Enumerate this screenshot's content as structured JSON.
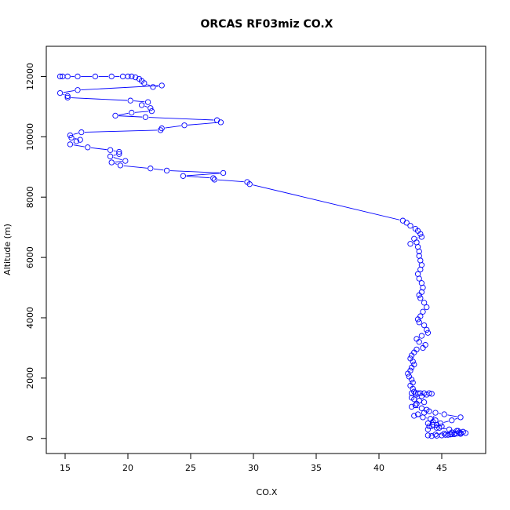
{
  "chart_data": {
    "type": "scatter",
    "title": "ORCAS RF03miz CO.X",
    "xlabel": "CO.X",
    "ylabel": "Altitude (m)",
    "xlim": [
      13.5,
      48.5
    ],
    "ylim": [
      -500,
      13000
    ],
    "x_ticks": [
      15,
      20,
      25,
      30,
      35,
      40,
      45
    ],
    "y_ticks": [
      0,
      2000,
      4000,
      6000,
      8000,
      10000,
      12000
    ],
    "x_tick_labels": [
      "15",
      "20",
      "25",
      "30",
      "35",
      "40",
      "45"
    ],
    "y_tick_labels": [
      "0",
      "2000",
      "4000",
      "6000",
      "8000",
      "10000",
      "12000"
    ],
    "grid": false,
    "legend": "none",
    "series": [
      {
        "color": "#0000ff",
        "marker": "open-circle",
        "connect": true,
        "x": [
          14.6,
          14.8,
          15.2,
          16.0,
          17.4,
          18.7,
          19.6,
          20.0,
          20.3,
          20.6,
          20.9,
          21.1,
          21.3,
          22.0,
          22.7,
          16.0,
          14.6,
          15.2,
          15.2,
          20.2,
          21.6,
          21.1,
          21.8,
          21.9,
          20.3,
          19.0,
          21.4,
          27.1,
          27.4,
          24.5,
          22.7,
          22.6,
          16.3,
          15.4,
          15.5,
          16.2,
          15.9,
          15.4,
          16.8,
          18.6,
          19.3,
          19.3,
          18.6,
          19.8,
          18.7,
          19.4,
          21.8,
          23.1,
          27.6,
          24.4,
          26.8,
          26.9,
          29.5,
          29.7,
          41.9,
          42.2,
          42.5,
          42.9,
          43.1,
          43.3,
          43.4,
          42.8,
          42.5,
          43.0,
          43.1,
          43.2,
          43.2,
          43.3,
          43.4,
          43.3,
          43.1,
          43.2,
          43.4,
          43.5,
          43.4,
          43.2,
          43.3,
          43.6,
          43.8,
          43.5,
          43.3,
          43.1,
          43.2,
          43.6,
          43.8,
          43.9,
          43.4,
          43.0,
          43.2,
          43.7,
          43.5,
          43.0,
          42.8,
          42.6,
          42.5,
          42.7,
          42.8,
          42.6,
          42.5,
          42.3,
          42.4,
          42.6,
          42.7,
          42.5,
          42.7,
          42.8,
          42.6,
          42.9,
          43.1,
          43.3,
          43.6,
          44.0,
          44.2,
          43.8,
          43.4,
          42.6,
          42.8,
          43.2,
          43.6,
          43.0,
          42.9,
          42.6,
          43.4,
          43.8,
          44.0,
          43.6,
          43.1,
          42.8,
          43.5,
          44.1,
          44.5,
          44.3,
          43.9,
          44.6,
          45.0,
          44.6,
          43.9,
          44.5,
          45.2,
          46.5,
          45.8,
          44.9,
          44.3,
          44.0,
          44.8,
          45.6,
          46.2,
          46.4,
          46.0,
          45.5,
          45.0,
          44.6,
          44.2,
          43.9,
          44.5,
          45.2,
          45.8,
          46.3,
          46.7,
          46.9,
          46.5,
          46.0,
          45.7,
          45.3,
          45.8,
          46.2,
          46.5
        ],
        "y": [
          12000,
          12000,
          12000,
          12000,
          12000,
          12000,
          12000,
          12000,
          12000,
          11970,
          11920,
          11850,
          11780,
          11650,
          11700,
          11550,
          11450,
          11350,
          11300,
          11200,
          11150,
          11050,
          10950,
          10850,
          10800,
          10700,
          10650,
          10550,
          10480,
          10380,
          10280,
          10220,
          10150,
          10050,
          9970,
          9900,
          9850,
          9750,
          9650,
          9560,
          9500,
          9430,
          9350,
          9200,
          9150,
          9050,
          8950,
          8880,
          8800,
          8700,
          8630,
          8580,
          8500,
          8430,
          7220,
          7150,
          7050,
          6950,
          6880,
          6780,
          6680,
          6620,
          6450,
          6500,
          6350,
          6200,
          6050,
          5900,
          5750,
          5600,
          5450,
          5300,
          5150,
          5000,
          4850,
          4750,
          4650,
          4500,
          4350,
          4200,
          4050,
          3950,
          3850,
          3750,
          3600,
          3500,
          3400,
          3300,
          3200,
          3100,
          3000,
          2950,
          2850,
          2750,
          2650,
          2550,
          2450,
          2350,
          2250,
          2150,
          2050,
          1950,
          1850,
          1750,
          1650,
          1550,
          1500,
          1500,
          1500,
          1500,
          1500,
          1500,
          1480,
          1450,
          1400,
          1350,
          1300,
          1250,
          1200,
          1150,
          1100,
          1050,
          1000,
          950,
          900,
          850,
          800,
          750,
          700,
          650,
          600,
          550,
          500,
          450,
          400,
          350,
          300,
          850,
          800,
          700,
          600,
          500,
          450,
          400,
          350,
          300,
          250,
          200,
          150,
          120,
          100,
          90,
          80,
          100,
          130,
          160,
          200,
          250,
          220,
          180,
          150,
          140,
          130,
          120,
          140,
          160,
          180
        ]
      }
    ]
  }
}
